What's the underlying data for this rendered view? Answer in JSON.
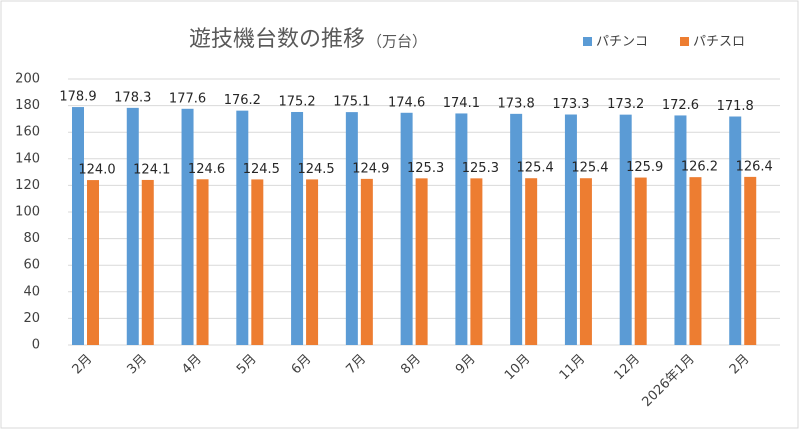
{
  "chart_data": {
    "type": "bar",
    "title": "遊技機台数の推移",
    "subtitle": "（万台）",
    "categories": [
      "2月",
      "3月",
      "4月",
      "5月",
      "6月",
      "7月",
      "8月",
      "9月",
      "10月",
      "11月",
      "12月",
      "2026年1月",
      "2月"
    ],
    "series": [
      {
        "name": "パチンコ",
        "color": "#5b9bd5",
        "values": [
          178.9,
          178.3,
          177.6,
          176.2,
          175.2,
          175.1,
          174.6,
          174.1,
          173.8,
          173.3,
          173.2,
          172.6,
          171.8
        ]
      },
      {
        "name": "パチスロ",
        "color": "#ed7d31",
        "values": [
          124.0,
          124.1,
          124.6,
          124.5,
          124.5,
          124.9,
          125.3,
          125.3,
          125.4,
          125.4,
          125.9,
          126.2,
          126.4
        ],
        "value_labels": [
          "124.0",
          "124.1",
          "124.6",
          "124.5",
          "124.5",
          "124.9",
          "125.3",
          "125.3",
          "125.4",
          "125.4",
          "125.9",
          "126.2",
          "126.4"
        ]
      }
    ],
    "ylim": [
      0,
      200
    ],
    "yticks": [
      0,
      20,
      40,
      60,
      80,
      100,
      120,
      140,
      160,
      180,
      200
    ],
    "grid": true,
    "legend": "top-right"
  }
}
